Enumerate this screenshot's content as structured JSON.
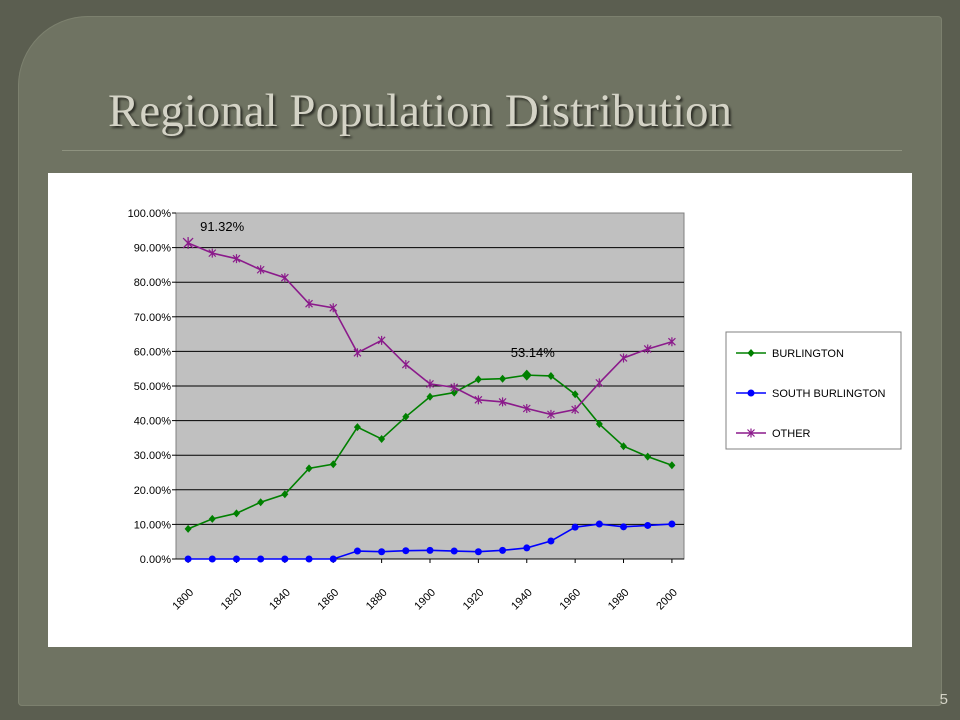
{
  "slide": {
    "title": "Regional Population Distribution",
    "number": "5"
  },
  "colors": {
    "background": "#5b5e50",
    "frame": "#6f7362",
    "title": "#d4d3c6",
    "plot_area": "#c0c0c0"
  },
  "chart_data": {
    "type": "line",
    "x": [
      1800,
      1810,
      1820,
      1830,
      1840,
      1850,
      1860,
      1870,
      1880,
      1890,
      1900,
      1910,
      1920,
      1930,
      1940,
      1950,
      1960,
      1970,
      1980,
      1990,
      2000
    ],
    "x_tick_labels": [
      "1800",
      "1820",
      "1840",
      "1860",
      "1880",
      "1900",
      "1920",
      "1940",
      "1960",
      "1980",
      "2000"
    ],
    "y_tick_labels": [
      "0.00%",
      "10.00%",
      "20.00%",
      "30.00%",
      "40.00%",
      "50.00%",
      "60.00%",
      "70.00%",
      "80.00%",
      "90.00%",
      "100.00%"
    ],
    "ylim": [
      0,
      100
    ],
    "y_unit": "%",
    "grid": true,
    "legend_position": "right",
    "series": [
      {
        "name": "BURLINGTON",
        "color": "#008000",
        "marker": "diamond",
        "values": [
          8.7,
          11.6,
          13.2,
          16.4,
          18.7,
          26.2,
          27.4,
          38.1,
          34.7,
          41.1,
          46.9,
          48.1,
          51.9,
          52.1,
          53.14,
          52.9,
          47.6,
          39.0,
          32.6,
          29.6,
          27.1
        ]
      },
      {
        "name": "SOUTH BURLINGTON",
        "color": "#0000ff",
        "marker": "circle",
        "values": [
          0,
          0,
          0,
          0,
          0,
          0,
          0,
          2.3,
          2.1,
          2.4,
          2.5,
          2.3,
          2.1,
          2.5,
          3.2,
          5.2,
          9.2,
          10.1,
          9.3,
          9.7,
          10.1
        ]
      },
      {
        "name": "OTHER",
        "color": "#8b1a8b",
        "marker": "star",
        "values": [
          91.32,
          88.4,
          86.8,
          83.6,
          81.3,
          73.8,
          72.6,
          59.6,
          63.2,
          56.2,
          50.6,
          49.6,
          46.0,
          45.4,
          43.5,
          41.8,
          43.2,
          50.9,
          58.1,
          60.7,
          62.8
        ]
      }
    ],
    "annotations": [
      {
        "text": "91.32%",
        "series": 2,
        "index": 0
      },
      {
        "text": "53.14%",
        "series": 0,
        "index": 14
      }
    ]
  }
}
